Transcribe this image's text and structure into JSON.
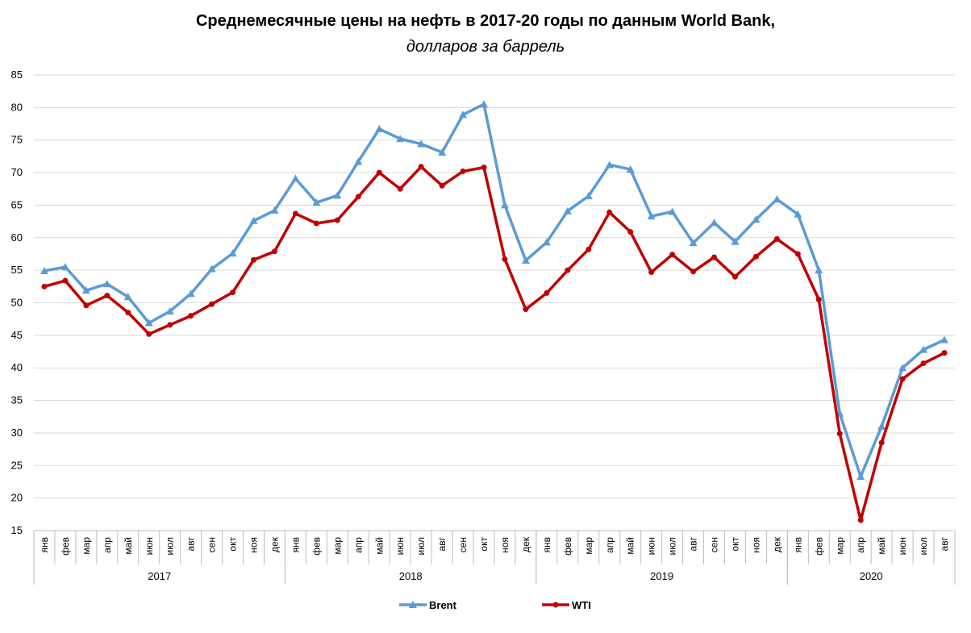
{
  "chart_data": {
    "type": "line",
    "title": "Среднемесячные цены на нефть в 2017-20 годы по данным World Bank,",
    "subtitle": "долларов за баррель",
    "category_groups": [
      {
        "name": "2017",
        "categories": [
          "янв",
          "фев",
          "мар",
          "апр",
          "май",
          "июн",
          "июл",
          "авг",
          "сен",
          "окт",
          "ноя",
          "дек"
        ]
      },
      {
        "name": "2018",
        "categories": [
          "янв",
          "фев",
          "мар",
          "апр",
          "май",
          "июн",
          "июл",
          "авг",
          "сен",
          "окт",
          "ноя",
          "дек"
        ]
      },
      {
        "name": "2019",
        "categories": [
          "янв",
          "фев",
          "мар",
          "апр",
          "май",
          "июн",
          "июл",
          "авг",
          "сен",
          "окт",
          "ноя",
          "дек"
        ]
      },
      {
        "name": "2020",
        "categories": [
          "янв",
          "фев",
          "мар",
          "апр",
          "май",
          "июн",
          "июл",
          "авг"
        ]
      }
    ],
    "series": [
      {
        "name": "Brent",
        "color": "#5b9bd5",
        "marker": "triangle",
        "values": [
          54.9,
          55.5,
          51.9,
          52.9,
          50.9,
          46.9,
          48.7,
          51.4,
          55.2,
          57.6,
          62.6,
          64.2,
          69.1,
          65.4,
          66.5,
          71.7,
          76.7,
          75.2,
          74.4,
          73.1,
          78.9,
          80.5,
          65.0,
          56.5,
          59.3,
          64.1,
          66.4,
          71.2,
          70.5,
          63.3,
          64.0,
          59.2,
          62.3,
          59.4,
          62.8,
          65.9,
          63.6,
          55.0,
          33.0,
          23.3,
          31.0,
          40.0,
          42.8,
          44.3
        ]
      },
      {
        "name": "WTI",
        "color": "#c00000",
        "marker": "circle",
        "values": [
          52.5,
          53.4,
          49.6,
          51.1,
          48.5,
          45.2,
          46.6,
          48.0,
          49.8,
          51.6,
          56.6,
          57.9,
          63.7,
          62.2,
          62.7,
          66.3,
          70.0,
          67.5,
          70.9,
          68.0,
          70.2,
          70.8,
          56.7,
          49.0,
          51.5,
          55.0,
          58.2,
          63.9,
          60.9,
          54.7,
          57.4,
          54.8,
          57.0,
          54.0,
          57.1,
          59.8,
          57.5,
          50.5,
          29.9,
          16.6,
          28.5,
          38.3,
          40.7,
          42.3
        ]
      }
    ],
    "ylim": [
      15,
      85
    ],
    "yticks": [
      15,
      20,
      25,
      30,
      35,
      40,
      45,
      50,
      55,
      60,
      65,
      70,
      75,
      80,
      85
    ],
    "grid": true,
    "legend": "bottom"
  }
}
